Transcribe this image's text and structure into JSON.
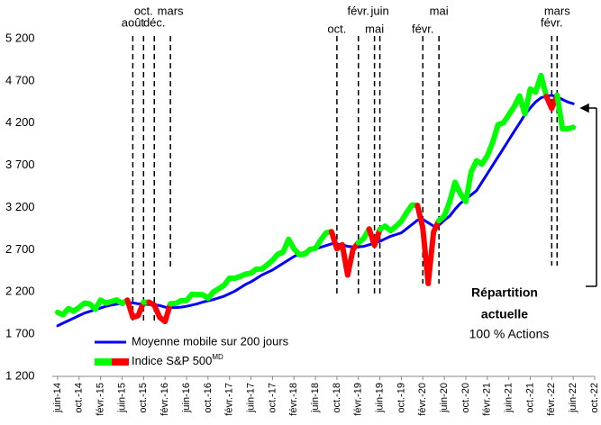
{
  "chart_data": {
    "type": "line",
    "x": [
      "2014-06",
      "2014-07",
      "2014-08",
      "2014-09",
      "2014-10",
      "2014-11",
      "2014-12",
      "2015-01",
      "2015-02",
      "2015-03",
      "2015-04",
      "2015-05",
      "2015-06",
      "2015-07",
      "2015-08",
      "2015-09",
      "2015-10",
      "2015-11",
      "2015-12",
      "2016-01",
      "2016-02",
      "2016-03",
      "2016-04",
      "2016-05",
      "2016-06",
      "2016-07",
      "2016-08",
      "2016-09",
      "2016-10",
      "2016-11",
      "2016-12",
      "2017-01",
      "2017-02",
      "2017-03",
      "2017-04",
      "2017-05",
      "2017-06",
      "2017-07",
      "2017-08",
      "2017-09",
      "2017-10",
      "2017-11",
      "2017-12",
      "2018-01",
      "2018-02",
      "2018-03",
      "2018-04",
      "2018-05",
      "2018-06",
      "2018-07",
      "2018-08",
      "2018-09",
      "2018-10",
      "2018-11",
      "2018-12",
      "2019-01",
      "2019-02",
      "2019-03",
      "2019-04",
      "2019-05",
      "2019-06",
      "2019-07",
      "2019-08",
      "2019-09",
      "2019-10",
      "2019-11",
      "2019-12",
      "2020-01",
      "2020-02",
      "2020-03",
      "2020-04",
      "2020-05",
      "2020-06",
      "2020-07",
      "2020-08",
      "2020-09",
      "2020-10",
      "2020-11",
      "2020-12",
      "2021-01",
      "2021-02",
      "2021-03",
      "2021-04",
      "2021-05",
      "2021-06",
      "2021-07",
      "2021-08",
      "2021-09",
      "2021-10",
      "2021-11",
      "2021-12",
      "2022-01",
      "2022-02",
      "2022-03",
      "2022-04",
      "2022-05",
      "2022-06"
    ],
    "series": [
      {
        "name": "Moyenne mobile sur 200 jours",
        "color": "#0000ff",
        "values": [
          1800,
          1830,
          1860,
          1890,
          1920,
          1950,
          1970,
          1990,
          2010,
          2030,
          2045,
          2055,
          2065,
          2070,
          2070,
          2060,
          2055,
          2050,
          2050,
          2040,
          2020,
          2015,
          2015,
          2020,
          2030,
          2045,
          2060,
          2080,
          2095,
          2110,
          2130,
          2150,
          2180,
          2210,
          2250,
          2290,
          2320,
          2360,
          2400,
          2430,
          2460,
          2500,
          2540,
          2580,
          2620,
          2650,
          2670,
          2690,
          2710,
          2730,
          2750,
          2770,
          2770,
          2760,
          2740,
          2735,
          2735,
          2740,
          2760,
          2780,
          2800,
          2830,
          2860,
          2880,
          2900,
          2950,
          3000,
          3050,
          3060,
          3020,
          2980,
          2990,
          3050,
          3100,
          3180,
          3250,
          3300,
          3350,
          3400,
          3500,
          3600,
          3700,
          3800,
          3900,
          4000,
          4100,
          4200,
          4300,
          4380,
          4450,
          4500,
          4520,
          4530,
          4510,
          4480,
          4450,
          4430
        ]
      },
      {
        "name": "Indice S&P 500",
        "name_superscript": "MD",
        "color": "#00ff00",
        "highlight_color": "#ff0000",
        "values": [
          1960,
          1930,
          2003,
          1972,
          2018,
          2068,
          2059,
          1995,
          2105,
          2068,
          2086,
          2107,
          2063,
          2104,
          1900,
          1920,
          2079,
          2080,
          2044,
          1900,
          1850,
          2060,
          2065,
          2097,
          2099,
          2174,
          2171,
          2168,
          2126,
          2199,
          2239,
          2279,
          2364,
          2363,
          2384,
          2412,
          2423,
          2470,
          2472,
          2519,
          2575,
          2648,
          2674,
          2824,
          2714,
          2641,
          2648,
          2705,
          2718,
          2816,
          2902,
          2914,
          2712,
          2760,
          2400,
          2704,
          2784,
          2834,
          2946,
          2752,
          2942,
          2980,
          2926,
          2977,
          3038,
          3141,
          3231,
          3226,
          2954,
          2300,
          2912,
          3044,
          3100,
          3271,
          3500,
          3363,
          3270,
          3622,
          3756,
          3714,
          3811,
          3973,
          4181,
          4204,
          4298,
          4395,
          4523,
          4308,
          4605,
          4567,
          4766,
          4516,
          4374,
          4530,
          4132,
          4132,
          4150
        ]
      }
    ],
    "events": [
      {
        "x": "2015-08",
        "label": "août"
      },
      {
        "x": "2015-10",
        "label": "oct."
      },
      {
        "x": "2015-12",
        "label": "déc."
      },
      {
        "x": "2016-03",
        "label": "mars"
      },
      {
        "x": "2018-10",
        "label": "oct."
      },
      {
        "x": "2019-02",
        "label": "févr."
      },
      {
        "x": "2019-05",
        "label": "mai"
      },
      {
        "x": "2019-06",
        "label": "juin"
      },
      {
        "x": "2020-02",
        "label": "févr."
      },
      {
        "x": "2020-05",
        "label": "mai"
      },
      {
        "x": "2022-02",
        "label": "févr."
      },
      {
        "x": "2022-03",
        "label": "mars"
      }
    ],
    "xlim": [
      "2014-05",
      "2022-10"
    ],
    "xticks": [
      {
        "value": "2014-06",
        "label": "juin-14"
      },
      {
        "value": "2014-10",
        "label": "oct.-14"
      },
      {
        "value": "2015-02",
        "label": "févr.-15"
      },
      {
        "value": "2015-06",
        "label": "juin-15"
      },
      {
        "value": "2015-10",
        "label": "oct.-15"
      },
      {
        "value": "2016-02",
        "label": "févr.-16"
      },
      {
        "value": "2016-06",
        "label": "juin-16"
      },
      {
        "value": "2016-10",
        "label": "oct.-16"
      },
      {
        "value": "2017-02",
        "label": "févr.-17"
      },
      {
        "value": "2017-06",
        "label": "juin-17"
      },
      {
        "value": "2017-10",
        "label": "oct.-17"
      },
      {
        "value": "2018-02",
        "label": "févr.-18"
      },
      {
        "value": "2018-06",
        "label": "juin-18"
      },
      {
        "value": "2018-10",
        "label": "oct.-18"
      },
      {
        "value": "2019-02",
        "label": "févr.-19"
      },
      {
        "value": "2019-06",
        "label": "juin-19"
      },
      {
        "value": "2019-10",
        "label": "oct.-19"
      },
      {
        "value": "2020-02",
        "label": "févr.-20"
      },
      {
        "value": "2020-06",
        "label": "juin-20"
      },
      {
        "value": "2020-10",
        "label": "oct.-20"
      },
      {
        "value": "2021-02",
        "label": "févr.-21"
      },
      {
        "value": "2021-06",
        "label": "juin-21"
      },
      {
        "value": "2021-10",
        "label": "oct.-21"
      },
      {
        "value": "2022-02",
        "label": "févr.-22"
      },
      {
        "value": "2022-06",
        "label": "juin-22"
      },
      {
        "value": "2022-10",
        "label": "oct.-22"
      }
    ],
    "ylim": [
      1200,
      5200
    ],
    "yticks": [
      {
        "value": 1200,
        "label": "1 200"
      },
      {
        "value": 1700,
        "label": "1 700"
      },
      {
        "value": 2200,
        "label": "2 200"
      },
      {
        "value": 2700,
        "label": "2 700"
      },
      {
        "value": 3200,
        "label": "3 200"
      },
      {
        "value": 3700,
        "label": "3 700"
      },
      {
        "value": 4200,
        "label": "4 200"
      },
      {
        "value": 4700,
        "label": "4 700"
      },
      {
        "value": 5200,
        "label": "5 200"
      }
    ],
    "grid": false,
    "annotation": {
      "title": [
        "Répartition",
        "actuelle"
      ],
      "text": "100 % Actions"
    }
  }
}
